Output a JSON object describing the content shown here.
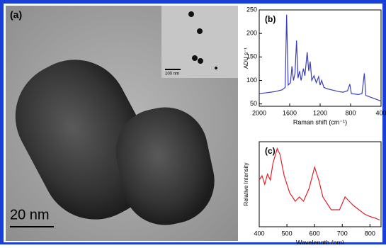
{
  "panel_a": {
    "label": "(a)",
    "scale_bar": "20 nm",
    "inset_scale": "100 nm"
  },
  "chart_data": [
    {
      "type": "line",
      "label": "(b)",
      "xlabel": "Raman shift (cm⁻¹)",
      "ylabel": "ADU s⁻¹",
      "xlim": [
        2000,
        400
      ],
      "xticks": [
        2000,
        1600,
        1200,
        800,
        400
      ],
      "ylim": [
        45,
        250
      ],
      "yticks": [
        50,
        100,
        150,
        200,
        250
      ],
      "series": [
        {
          "color": "#3b3fb8",
          "x": [
            2000,
            1900,
            1800,
            1700,
            1660,
            1640,
            1620,
            1590,
            1570,
            1550,
            1530,
            1510,
            1490,
            1470,
            1450,
            1420,
            1400,
            1370,
            1350,
            1330,
            1310,
            1280,
            1250,
            1220,
            1200,
            1180,
            1150,
            1100,
            1050,
            1000,
            950,
            900,
            840,
            810,
            790,
            700,
            650,
            620,
            600,
            500,
            400
          ],
          "values": [
            72,
            74,
            76,
            80,
            85,
            240,
            90,
            95,
            130,
            100,
            115,
            185,
            105,
            120,
            100,
            125,
            110,
            160,
            120,
            140,
            100,
            110,
            95,
            108,
            90,
            100,
            85,
            82,
            80,
            78,
            76,
            75,
            78,
            92,
            72,
            70,
            72,
            115,
            68,
            62,
            56
          ]
        }
      ]
    },
    {
      "type": "line",
      "label": "(c)",
      "xlabel": "Wavelength (nm)",
      "ylabel": "Relative Intensity",
      "xlim": [
        400,
        840
      ],
      "xticks": [
        400,
        500,
        600,
        700,
        800
      ],
      "ylim": [
        0,
        100
      ],
      "series": [
        {
          "color": "#e0202a",
          "x": [
            400,
            410,
            420,
            430,
            440,
            450,
            465,
            475,
            490,
            510,
            530,
            545,
            560,
            580,
            600,
            615,
            630,
            660,
            690,
            710,
            725,
            740,
            760,
            780,
            800,
            820,
            835
          ],
          "values": [
            55,
            60,
            50,
            62,
            55,
            75,
            92,
            85,
            60,
            40,
            30,
            35,
            30,
            45,
            70,
            55,
            35,
            20,
            20,
            35,
            30,
            25,
            20,
            15,
            12,
            10,
            8
          ]
        }
      ]
    }
  ]
}
